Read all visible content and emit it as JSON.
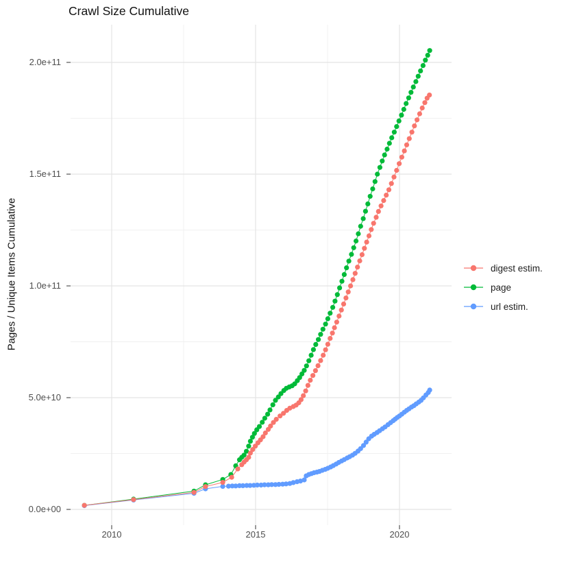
{
  "chart_data": {
    "type": "scatter",
    "title": "Crawl Size Cumulative",
    "xlabel": "",
    "ylabel": "Pages / Unique Items Cumulative",
    "legend_position": "right",
    "grid": true,
    "x_ticks": [
      {
        "value": 2010,
        "label": "2010"
      },
      {
        "value": 2015,
        "label": "2015"
      },
      {
        "value": 2020,
        "label": "2020"
      }
    ],
    "x_minor_ticks": [
      2012.5,
      2017.5
    ],
    "y_ticks": [
      {
        "value_billions": 0,
        "label": "0.0e+00"
      },
      {
        "value_billions": 50,
        "label": "5.0e+10"
      },
      {
        "value_billions": 100,
        "label": "1.0e+11"
      },
      {
        "value_billions": 150,
        "label": "1.5e+11"
      },
      {
        "value_billions": 200,
        "label": "2.0e+11"
      }
    ],
    "y_minor_ticks_billions": [
      25,
      75,
      125,
      175
    ],
    "x_range_shown": [
      2008.6,
      2021.8
    ],
    "y_range_shown_billions": [
      -7,
      217
    ],
    "values_unit": "cumulative pages / unique items; value stored in billions (1 = 1e9)",
    "series": [
      {
        "name": "digest estim.",
        "color": "#F8766D",
        "points_year_billions": [
          [
            2009.05,
            1.8
          ],
          [
            2010.76,
            4.4
          ],
          [
            2012.86,
            7.6
          ],
          [
            2013.26,
            10.2
          ],
          [
            2013.86,
            12.1
          ],
          [
            2014.17,
            14.4
          ],
          [
            2014.38,
            18.1
          ],
          [
            2014.52,
            20.0
          ],
          [
            2014.6,
            21.2
          ],
          [
            2014.68,
            22.2
          ],
          [
            2014.76,
            23.3
          ],
          [
            2014.82,
            25.2
          ],
          [
            2014.9,
            26.8
          ],
          [
            2014.99,
            28.3
          ],
          [
            2015.08,
            29.8
          ],
          [
            2015.17,
            31.1
          ],
          [
            2015.26,
            32.5
          ],
          [
            2015.34,
            34.2
          ],
          [
            2015.44,
            35.8
          ],
          [
            2015.52,
            37.3
          ],
          [
            2015.62,
            38.9
          ],
          [
            2015.72,
            40.3
          ],
          [
            2015.85,
            41.8
          ],
          [
            2015.97,
            43.0
          ],
          [
            2016.08,
            44.3
          ],
          [
            2016.19,
            45.3
          ],
          [
            2016.31,
            46.0
          ],
          [
            2016.41,
            46.7
          ],
          [
            2016.5,
            47.7
          ],
          [
            2016.58,
            49.1
          ],
          [
            2016.66,
            50.9
          ],
          [
            2016.74,
            53.0
          ],
          [
            2016.82,
            55.5
          ],
          [
            2016.9,
            57.8
          ],
          [
            2016.99,
            59.9
          ],
          [
            2017.08,
            62.1
          ],
          [
            2017.17,
            64.3
          ],
          [
            2017.26,
            66.6
          ],
          [
            2017.35,
            69.0
          ],
          [
            2017.43,
            71.4
          ],
          [
            2017.51,
            73.9
          ],
          [
            2017.59,
            76.5
          ],
          [
            2017.67,
            78.9
          ],
          [
            2017.74,
            81.3
          ],
          [
            2017.82,
            83.8
          ],
          [
            2017.9,
            86.5
          ],
          [
            2017.98,
            89.2
          ],
          [
            2018.06,
            91.9
          ],
          [
            2018.14,
            94.6
          ],
          [
            2018.22,
            97.3
          ],
          [
            2018.3,
            100.0
          ],
          [
            2018.38,
            102.8
          ],
          [
            2018.46,
            105.6
          ],
          [
            2018.54,
            108.4
          ],
          [
            2018.62,
            111.2
          ],
          [
            2018.7,
            114.0
          ],
          [
            2018.78,
            116.8
          ],
          [
            2018.86,
            119.6
          ],
          [
            2018.94,
            122.4
          ],
          [
            2019.02,
            125.2
          ],
          [
            2019.1,
            128.0
          ],
          [
            2019.19,
            130.7
          ],
          [
            2019.27,
            133.3
          ],
          [
            2019.36,
            135.8
          ],
          [
            2019.45,
            138.2
          ],
          [
            2019.54,
            140.6
          ],
          [
            2019.63,
            143.0
          ],
          [
            2019.72,
            145.8
          ],
          [
            2019.81,
            148.7
          ],
          [
            2019.9,
            151.7
          ],
          [
            2019.99,
            154.7
          ],
          [
            2020.08,
            157.6
          ],
          [
            2020.17,
            160.4
          ],
          [
            2020.25,
            163.1
          ],
          [
            2020.34,
            165.9
          ],
          [
            2020.43,
            168.8
          ],
          [
            2020.52,
            171.6
          ],
          [
            2020.61,
            174.3
          ],
          [
            2020.7,
            177.0
          ],
          [
            2020.79,
            179.6
          ],
          [
            2020.88,
            182.0
          ],
          [
            2020.96,
            184.0
          ],
          [
            2021.04,
            185.4
          ]
        ]
      },
      {
        "name": "page",
        "color": "#00BA38",
        "points_year_billions": [
          [
            2009.05,
            1.8
          ],
          [
            2010.76,
            4.6
          ],
          [
            2012.86,
            8.2
          ],
          [
            2013.26,
            11.0
          ],
          [
            2013.86,
            13.4
          ],
          [
            2014.14,
            15.6
          ],
          [
            2014.31,
            19.5
          ],
          [
            2014.44,
            22.2
          ],
          [
            2014.52,
            23.3
          ],
          [
            2014.6,
            24.3
          ],
          [
            2014.68,
            26.0
          ],
          [
            2014.76,
            28.3
          ],
          [
            2014.82,
            30.5
          ],
          [
            2014.89,
            32.3
          ],
          [
            2014.96,
            34.0
          ],
          [
            2015.04,
            35.6
          ],
          [
            2015.13,
            37.1
          ],
          [
            2015.23,
            39.0
          ],
          [
            2015.32,
            40.8
          ],
          [
            2015.42,
            42.6
          ],
          [
            2015.5,
            44.5
          ],
          [
            2015.6,
            46.8
          ],
          [
            2015.69,
            48.8
          ],
          [
            2015.79,
            50.3
          ],
          [
            2015.88,
            51.8
          ],
          [
            2015.98,
            53.2
          ],
          [
            2016.07,
            54.2
          ],
          [
            2016.17,
            54.8
          ],
          [
            2016.27,
            55.3
          ],
          [
            2016.36,
            56.2
          ],
          [
            2016.45,
            57.6
          ],
          [
            2016.53,
            59.0
          ],
          [
            2016.61,
            60.6
          ],
          [
            2016.69,
            62.2
          ],
          [
            2016.77,
            64.2
          ],
          [
            2016.85,
            66.5
          ],
          [
            2016.93,
            69.0
          ],
          [
            2017.01,
            71.5
          ],
          [
            2017.09,
            73.8
          ],
          [
            2017.18,
            76.0
          ],
          [
            2017.26,
            78.3
          ],
          [
            2017.34,
            80.6
          ],
          [
            2017.43,
            82.9
          ],
          [
            2017.51,
            85.3
          ],
          [
            2017.59,
            87.8
          ],
          [
            2017.68,
            90.4
          ],
          [
            2017.76,
            93.2
          ],
          [
            2017.84,
            96.1
          ],
          [
            2017.92,
            99.1
          ],
          [
            2018.0,
            102.1
          ],
          [
            2018.08,
            105.1
          ],
          [
            2018.16,
            108.1
          ],
          [
            2018.24,
            111.1
          ],
          [
            2018.33,
            114.1
          ],
          [
            2018.41,
            117.1
          ],
          [
            2018.49,
            120.1
          ],
          [
            2018.57,
            123.3
          ],
          [
            2018.65,
            126.7
          ],
          [
            2018.74,
            130.1
          ],
          [
            2018.82,
            133.4
          ],
          [
            2018.9,
            136.7
          ],
          [
            2018.98,
            140.1
          ],
          [
            2019.07,
            143.4
          ],
          [
            2019.15,
            146.7
          ],
          [
            2019.23,
            150.0
          ],
          [
            2019.32,
            153.0
          ],
          [
            2019.4,
            155.9
          ],
          [
            2019.48,
            158.6
          ],
          [
            2019.57,
            161.2
          ],
          [
            2019.65,
            163.8
          ],
          [
            2019.73,
            166.3
          ],
          [
            2019.82,
            168.8
          ],
          [
            2019.9,
            171.3
          ],
          [
            2019.98,
            173.8
          ],
          [
            2020.07,
            176.4
          ],
          [
            2020.15,
            179.0
          ],
          [
            2020.23,
            181.6
          ],
          [
            2020.32,
            184.1
          ],
          [
            2020.4,
            186.6
          ],
          [
            2020.48,
            189.0
          ],
          [
            2020.57,
            191.4
          ],
          [
            2020.65,
            193.8
          ],
          [
            2020.73,
            196.2
          ],
          [
            2020.82,
            198.6
          ],
          [
            2020.9,
            201.0
          ],
          [
            2020.98,
            203.2
          ],
          [
            2021.05,
            205.3
          ]
        ]
      },
      {
        "name": "url estim.",
        "color": "#619CFF",
        "points_year_billions": [
          [
            2009.05,
            1.7
          ],
          [
            2010.76,
            4.2
          ],
          [
            2012.86,
            7.2
          ],
          [
            2013.26,
            9.2
          ],
          [
            2013.86,
            10.3
          ],
          [
            2014.06,
            10.4
          ],
          [
            2014.19,
            10.5
          ],
          [
            2014.31,
            10.5
          ],
          [
            2014.44,
            10.6
          ],
          [
            2014.56,
            10.6
          ],
          [
            2014.69,
            10.7
          ],
          [
            2014.81,
            10.7
          ],
          [
            2014.94,
            10.8
          ],
          [
            2015.06,
            10.9
          ],
          [
            2015.19,
            10.9
          ],
          [
            2015.31,
            11.0
          ],
          [
            2015.44,
            11.0
          ],
          [
            2015.56,
            11.1
          ],
          [
            2015.69,
            11.1
          ],
          [
            2015.81,
            11.2
          ],
          [
            2015.94,
            11.3
          ],
          [
            2016.06,
            11.4
          ],
          [
            2016.19,
            11.6
          ],
          [
            2016.31,
            12.0
          ],
          [
            2016.44,
            12.4
          ],
          [
            2016.56,
            12.7
          ],
          [
            2016.69,
            13.2
          ],
          [
            2016.76,
            15.0
          ],
          [
            2016.85,
            15.6
          ],
          [
            2016.94,
            16.0
          ],
          [
            2017.03,
            16.4
          ],
          [
            2017.13,
            16.7
          ],
          [
            2017.22,
            17.0
          ],
          [
            2017.32,
            17.5
          ],
          [
            2017.42,
            17.9
          ],
          [
            2017.51,
            18.4
          ],
          [
            2017.61,
            19.0
          ],
          [
            2017.7,
            19.6
          ],
          [
            2017.8,
            20.3
          ],
          [
            2017.89,
            21.0
          ],
          [
            2017.99,
            21.7
          ],
          [
            2018.08,
            22.3
          ],
          [
            2018.18,
            23.0
          ],
          [
            2018.27,
            23.6
          ],
          [
            2018.37,
            24.3
          ],
          [
            2018.46,
            25.1
          ],
          [
            2018.56,
            26.1
          ],
          [
            2018.65,
            27.2
          ],
          [
            2018.75,
            28.6
          ],
          [
            2018.84,
            30.1
          ],
          [
            2018.93,
            31.6
          ],
          [
            2019.03,
            32.8
          ],
          [
            2019.12,
            33.6
          ],
          [
            2019.22,
            34.4
          ],
          [
            2019.31,
            35.2
          ],
          [
            2019.41,
            36.1
          ],
          [
            2019.5,
            36.9
          ],
          [
            2019.6,
            37.9
          ],
          [
            2019.69,
            38.8
          ],
          [
            2019.78,
            39.7
          ],
          [
            2019.85,
            40.4
          ],
          [
            2019.92,
            41.1
          ],
          [
            2020.0,
            41.8
          ],
          [
            2020.08,
            42.6
          ],
          [
            2020.17,
            43.5
          ],
          [
            2020.25,
            44.3
          ],
          [
            2020.33,
            45.0
          ],
          [
            2020.42,
            45.8
          ],
          [
            2020.5,
            46.4
          ],
          [
            2020.58,
            47.2
          ],
          [
            2020.67,
            48.0
          ],
          [
            2020.75,
            48.8
          ],
          [
            2020.83,
            49.9
          ],
          [
            2020.92,
            51.2
          ],
          [
            2021.0,
            52.3
          ],
          [
            2021.05,
            53.4
          ]
        ]
      }
    ]
  }
}
